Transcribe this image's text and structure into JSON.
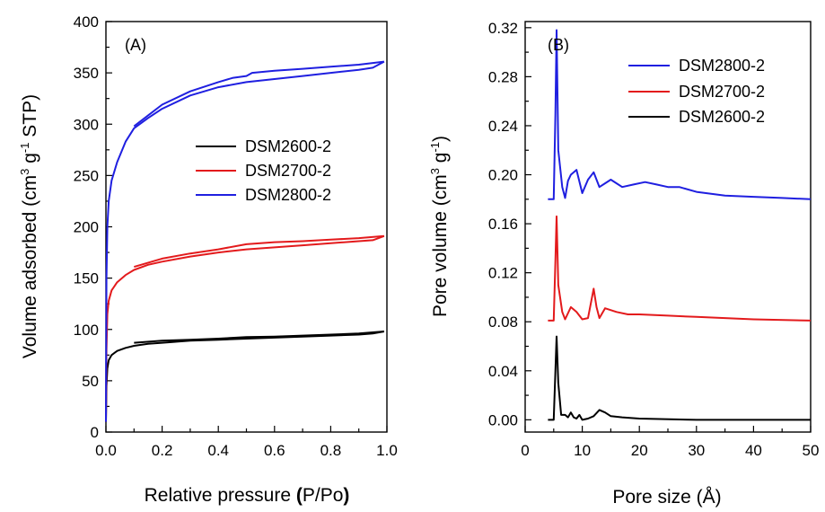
{
  "chart_data": [
    {
      "type": "line",
      "panel_label": "(A)",
      "xlabel": {
        "main": "Relative pressure ",
        "bold": "(",
        "rest": "P/Po",
        "close": ")"
      },
      "ylabel": {
        "pre": "Volume adsorbed (cm",
        "sup1": "3",
        "mid": " g",
        "sup2": "-1",
        "post": " STP)"
      },
      "xlim": [
        0.0,
        1.0
      ],
      "ylim": [
        0,
        400
      ],
      "xticks": [
        "0.0",
        "0.2",
        "0.4",
        "0.6",
        "0.8",
        "1.0"
      ],
      "yticks": [
        "0",
        "50",
        "100",
        "150",
        "200",
        "250",
        "300",
        "350",
        "400"
      ],
      "legend_position": "center-right",
      "grid": false,
      "series": [
        {
          "name": "DSM2600-2",
          "color": "#000000",
          "adsorption": [
            [
              0.0,
              10
            ],
            [
              0.002,
              45
            ],
            [
              0.005,
              62
            ],
            [
              0.01,
              70
            ],
            [
              0.02,
              75
            ],
            [
              0.04,
              79
            ],
            [
              0.07,
              82
            ],
            [
              0.1,
              84
            ],
            [
              0.15,
              86
            ],
            [
              0.2,
              87
            ],
            [
              0.3,
              89
            ],
            [
              0.4,
              90
            ],
            [
              0.5,
              91
            ],
            [
              0.6,
              92
            ],
            [
              0.7,
              93
            ],
            [
              0.8,
              94
            ],
            [
              0.9,
              95
            ],
            [
              0.95,
              96
            ],
            [
              0.99,
              98
            ]
          ],
          "desorption": [
            [
              0.99,
              98
            ],
            [
              0.9,
              96
            ],
            [
              0.8,
              95
            ],
            [
              0.7,
              94
            ],
            [
              0.6,
              93
            ],
            [
              0.5,
              92.5
            ],
            [
              0.4,
              91
            ],
            [
              0.3,
              90
            ],
            [
              0.2,
              89
            ],
            [
              0.1,
              87
            ]
          ]
        },
        {
          "name": "DSM2700-2",
          "color": "#e31a1c",
          "adsorption": [
            [
              0.0,
              10
            ],
            [
              0.002,
              80
            ],
            [
              0.005,
              115
            ],
            [
              0.01,
              128
            ],
            [
              0.02,
              138
            ],
            [
              0.04,
              146
            ],
            [
              0.07,
              153
            ],
            [
              0.1,
              158
            ],
            [
              0.15,
              163
            ],
            [
              0.2,
              166
            ],
            [
              0.3,
              171
            ],
            [
              0.4,
              175
            ],
            [
              0.5,
              178
            ],
            [
              0.6,
              180
            ],
            [
              0.7,
              182
            ],
            [
              0.8,
              184
            ],
            [
              0.9,
              186
            ],
            [
              0.95,
              187
            ],
            [
              0.99,
              191
            ]
          ],
          "desorption": [
            [
              0.99,
              191
            ],
            [
              0.9,
              189
            ],
            [
              0.8,
              187.5
            ],
            [
              0.7,
              186
            ],
            [
              0.6,
              185
            ],
            [
              0.5,
              183
            ],
            [
              0.4,
              178
            ],
            [
              0.3,
              174
            ],
            [
              0.2,
              169
            ],
            [
              0.1,
              161
            ]
          ]
        },
        {
          "name": "DSM2800-2",
          "color": "#1f1fe0",
          "adsorption": [
            [
              0.0,
              10
            ],
            [
              0.002,
              150
            ],
            [
              0.005,
              200
            ],
            [
              0.01,
              225
            ],
            [
              0.02,
              245
            ],
            [
              0.04,
              263
            ],
            [
              0.07,
              283
            ],
            [
              0.1,
              296
            ],
            [
              0.15,
              306
            ],
            [
              0.2,
              315
            ],
            [
              0.3,
              328
            ],
            [
              0.4,
              336
            ],
            [
              0.5,
              341
            ],
            [
              0.6,
              344
            ],
            [
              0.7,
              347
            ],
            [
              0.8,
              350
            ],
            [
              0.9,
              353
            ],
            [
              0.95,
              355
            ],
            [
              0.99,
              361
            ]
          ],
          "desorption": [
            [
              0.99,
              361
            ],
            [
              0.9,
              358
            ],
            [
              0.8,
              356
            ],
            [
              0.7,
              354
            ],
            [
              0.6,
              352
            ],
            [
              0.52,
              350
            ],
            [
              0.5,
              347
            ],
            [
              0.45,
              345
            ],
            [
              0.4,
              341
            ],
            [
              0.3,
              332
            ],
            [
              0.2,
              319
            ],
            [
              0.1,
              298
            ]
          ]
        }
      ]
    },
    {
      "type": "line",
      "panel_label": "(B)",
      "xlabel": {
        "main": "Pore size (Å)"
      },
      "ylabel": {
        "pre": "Pore volume (cm",
        "sup1": "3",
        "mid": " g",
        "sup2": "-1",
        "post": ")"
      },
      "xlim": [
        0,
        50
      ],
      "ylim": [
        -0.01,
        0.325
      ],
      "xticks": [
        "0",
        "10",
        "20",
        "30",
        "40",
        "50"
      ],
      "yticks": [
        "0.00",
        "0.04",
        "0.08",
        "0.12",
        "0.16",
        "0.20",
        "0.24",
        "0.28",
        "0.32"
      ],
      "legend_position": "top-right",
      "grid": false,
      "series": [
        {
          "name": "DSM2800-2",
          "color": "#1f1fe0",
          "points": [
            [
              4,
              0.18
            ],
            [
              5,
              0.18
            ],
            [
              5.3,
              0.25
            ],
            [
              5.5,
              0.318
            ],
            [
              5.8,
              0.22
            ],
            [
              6.5,
              0.19
            ],
            [
              7,
              0.181
            ],
            [
              7.5,
              0.195
            ],
            [
              8,
              0.2
            ],
            [
              9,
              0.204
            ],
            [
              10,
              0.185
            ],
            [
              11,
              0.196
            ],
            [
              12,
              0.202
            ],
            [
              13,
              0.19
            ],
            [
              14,
              0.193
            ],
            [
              15,
              0.196
            ],
            [
              16,
              0.193
            ],
            [
              17,
              0.19
            ],
            [
              19,
              0.192
            ],
            [
              21,
              0.194
            ],
            [
              23,
              0.192
            ],
            [
              25,
              0.19
            ],
            [
              27,
              0.19
            ],
            [
              30,
              0.186
            ],
            [
              35,
              0.183
            ],
            [
              40,
              0.182
            ],
            [
              45,
              0.181
            ],
            [
              50,
              0.18
            ]
          ]
        },
        {
          "name": "DSM2700-2",
          "color": "#e31a1c",
          "points": [
            [
              4,
              0.081
            ],
            [
              5,
              0.081
            ],
            [
              5.3,
              0.13
            ],
            [
              5.5,
              0.166
            ],
            [
              5.8,
              0.11
            ],
            [
              6.5,
              0.088
            ],
            [
              7,
              0.082
            ],
            [
              8,
              0.092
            ],
            [
              9,
              0.088
            ],
            [
              10,
              0.082
            ],
            [
              11,
              0.083
            ],
            [
              12,
              0.107
            ],
            [
              12.5,
              0.092
            ],
            [
              13,
              0.083
            ],
            [
              14,
              0.091
            ],
            [
              16,
              0.088
            ],
            [
              18,
              0.086
            ],
            [
              20,
              0.086
            ],
            [
              25,
              0.085
            ],
            [
              30,
              0.084
            ],
            [
              40,
              0.082
            ],
            [
              50,
              0.081
            ]
          ]
        },
        {
          "name": "DSM2600-2",
          "color": "#000000",
          "points": [
            [
              4,
              0.0
            ],
            [
              5,
              0.0
            ],
            [
              5.3,
              0.04
            ],
            [
              5.5,
              0.068
            ],
            [
              5.8,
              0.03
            ],
            [
              6.3,
              0.004
            ],
            [
              7,
              0.004
            ],
            [
              7.5,
              0.002
            ],
            [
              8,
              0.006
            ],
            [
              8.5,
              0.002
            ],
            [
              9,
              0.001
            ],
            [
              9.5,
              0.004
            ],
            [
              10,
              0.0
            ],
            [
              11,
              0.001
            ],
            [
              12,
              0.003
            ],
            [
              13,
              0.008
            ],
            [
              14,
              0.006
            ],
            [
              15,
              0.003
            ],
            [
              17,
              0.002
            ],
            [
              20,
              0.001
            ],
            [
              30,
              0.0
            ],
            [
              40,
              0.0
            ],
            [
              50,
              0.0
            ]
          ]
        }
      ]
    }
  ]
}
